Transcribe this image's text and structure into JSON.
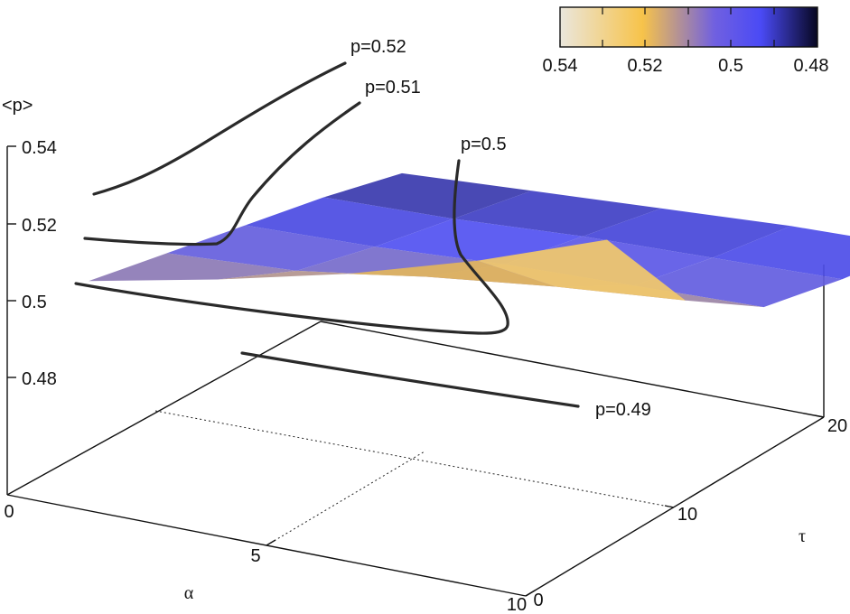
{
  "chart_data": {
    "type": "surface3d",
    "title": "",
    "z_axis": {
      "label": "<p>",
      "ticks": [
        "0.54",
        "0.52",
        "0.5",
        "0.48"
      ]
    },
    "x_axis": {
      "label": "α",
      "ticks": [
        "0",
        "5",
        "10"
      ],
      "range": [
        0,
        10
      ]
    },
    "y_axis": {
      "label": "τ",
      "ticks": [
        "0",
        "10",
        "20"
      ],
      "range": [
        0,
        20
      ]
    },
    "colorbar": {
      "ticks": [
        "0.54",
        "0.52",
        "0.5",
        "0.48"
      ],
      "range": [
        0.48,
        0.54
      ],
      "palette": [
        "#e8e2d4",
        "#f5c24a",
        "#5050f2",
        "#0a0a25"
      ]
    },
    "grid": {
      "x": [
        0,
        2.5,
        5,
        7.5,
        10
      ],
      "y": [
        0,
        5,
        10,
        15,
        20
      ]
    },
    "surface": [
      [
        0.505,
        0.512,
        0.52,
        0.53,
        0.542
      ],
      [
        0.501,
        0.503,
        0.508,
        0.512,
        0.515
      ],
      [
        0.497,
        0.498,
        0.5,
        0.501,
        0.502
      ],
      [
        0.493,
        0.494,
        0.496,
        0.497,
        0.498
      ],
      [
        0.488,
        0.49,
        0.492,
        0.494,
        0.495
      ]
    ],
    "contours": [
      {
        "label": "p=0.52",
        "level": 0.52
      },
      {
        "label": "p=0.51",
        "level": 0.51
      },
      {
        "label": "p=0.5",
        "level": 0.5
      },
      {
        "label": "p=0.49",
        "level": 0.49
      }
    ]
  }
}
